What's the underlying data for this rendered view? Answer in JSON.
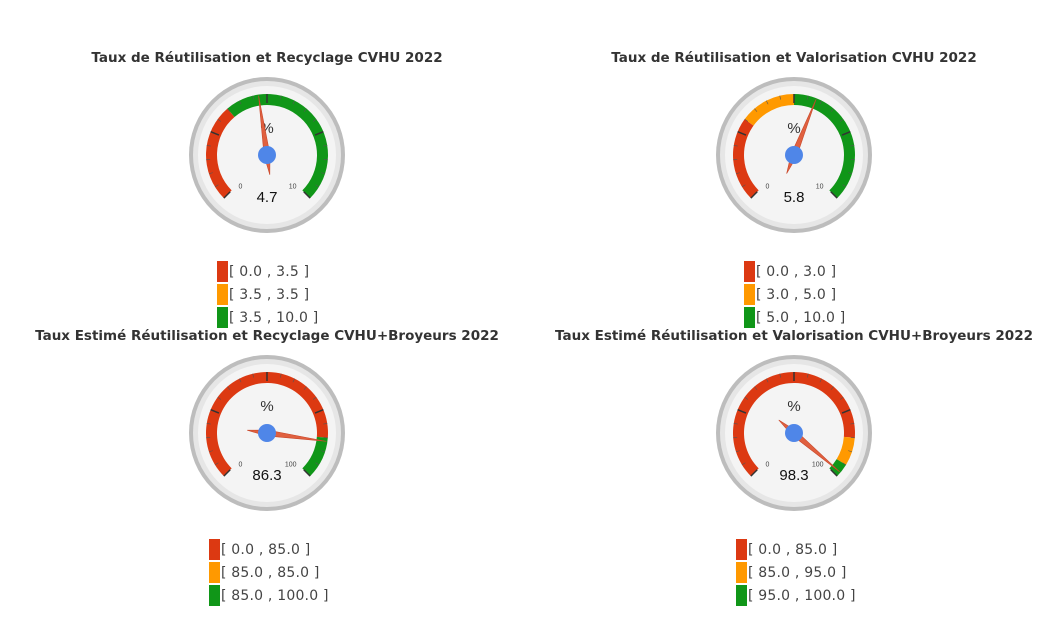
{
  "chart_data": [
    {
      "type": "gauge",
      "title": "Taux de Réutilisation et Recyclage CVHU 2022",
      "unit": "%",
      "value": 4.7,
      "value_label": "4.7",
      "min": 0,
      "max": 10,
      "min_label": "0",
      "max_label": "10",
      "ranges": [
        {
          "from": 0.0,
          "to": 3.5,
          "color": "#dc3912",
          "label": "[ 0.0 , 3.5 ]"
        },
        {
          "from": 3.5,
          "to": 3.5,
          "color": "#ff9900",
          "label": "[ 3.5 , 3.5 ]"
        },
        {
          "from": 3.5,
          "to": 10.0,
          "color": "#109618",
          "label": "[ 3.5 , 10.0 ]"
        }
      ]
    },
    {
      "type": "gauge",
      "title": "Taux de Réutilisation et Valorisation CVHU 2022",
      "unit": "%",
      "value": 5.8,
      "value_label": "5.8",
      "min": 0,
      "max": 10,
      "min_label": "0",
      "max_label": "10",
      "ranges": [
        {
          "from": 0.0,
          "to": 3.0,
          "color": "#dc3912",
          "label": "[ 0.0 , 3.0 ]"
        },
        {
          "from": 3.0,
          "to": 5.0,
          "color": "#ff9900",
          "label": "[ 3.0 , 5.0 ]"
        },
        {
          "from": 5.0,
          "to": 10.0,
          "color": "#109618",
          "label": "[ 5.0 , 10.0 ]"
        }
      ]
    },
    {
      "type": "gauge",
      "title": "Taux Estimé Réutilisation et Recyclage CVHU+Broyeurs 2022",
      "unit": "%",
      "value": 86.3,
      "value_label": "86.3",
      "min": 0,
      "max": 100,
      "min_label": "0",
      "max_label": "100",
      "ranges": [
        {
          "from": 0.0,
          "to": 85.0,
          "color": "#dc3912",
          "label": "[ 0.0 , 85.0 ]"
        },
        {
          "from": 85.0,
          "to": 85.0,
          "color": "#ff9900",
          "label": "[ 85.0 , 85.0 ]"
        },
        {
          "from": 85.0,
          "to": 100.0,
          "color": "#109618",
          "label": "[ 85.0 , 100.0 ]"
        }
      ]
    },
    {
      "type": "gauge",
      "title": "Taux Estimé Réutilisation et Valorisation CVHU+Broyeurs 2022",
      "unit": "%",
      "value": 98.3,
      "value_label": "98.3",
      "min": 0,
      "max": 100,
      "min_label": "0",
      "max_label": "100",
      "ranges": [
        {
          "from": 0.0,
          "to": 85.0,
          "color": "#dc3912",
          "label": "[ 0.0 , 85.0 ]"
        },
        {
          "from": 85.0,
          "to": 95.0,
          "color": "#ff9900",
          "label": "[ 85.0 , 95.0 ]"
        },
        {
          "from": 95.0,
          "to": 100.0,
          "color": "#109618",
          "label": "[ 95.0 , 100.0 ]"
        }
      ]
    }
  ],
  "colors": {
    "needle": "#e0603f",
    "hub": "#4f86e8",
    "face": "#f4f4f4",
    "rim": "#cccccc"
  }
}
